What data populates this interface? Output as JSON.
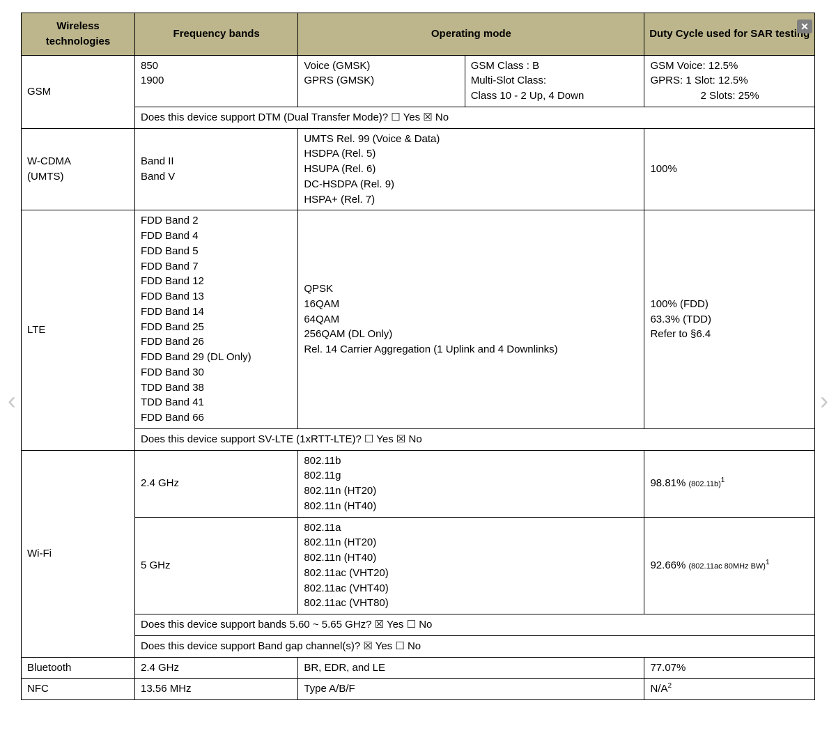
{
  "headers": {
    "tech": "Wireless technologies",
    "freq": "Frequency bands",
    "mode": "Operating mode",
    "duty": "Duty Cycle used for SAR testing"
  },
  "gsm": {
    "tech": "GSM",
    "freq": "850\n1900",
    "mode_a": "Voice (GMSK)\nGPRS (GMSK)",
    "mode_b": "GSM Class : B\nMulti-Slot Class:\nClass 10 - 2 Up, 4 Down",
    "duty_l1": "GSM Voice: 12.5%",
    "duty_l2": "GPRS: 1 Slot: 12.5%",
    "duty_l3": "2 Slots: 25%",
    "dtm": "Does this device support DTM (Dual Transfer Mode)? ☐ Yes ☒ No"
  },
  "wcdma": {
    "tech": "W-CDMA\n(UMTS)",
    "freq": "Band II\nBand V",
    "mode": "UMTS Rel. 99 (Voice & Data)\nHSDPA (Rel. 5)\nHSUPA (Rel. 6)\nDC-HSDPA (Rel. 9)\nHSPA+ (Rel. 7)",
    "duty": "100%"
  },
  "lte": {
    "tech": "LTE",
    "freq": "FDD Band 2\nFDD Band 4\nFDD Band 5\nFDD Band 7\nFDD Band 12\nFDD Band 13\nFDD Band 14\nFDD Band 25\nFDD Band 26\nFDD Band 29 (DL Only)\nFDD Band 30\nTDD Band 38\nTDD Band 41\nFDD Band 66",
    "mode": "QPSK\n16QAM\n64QAM\n256QAM (DL Only)\nRel. 14 Carrier Aggregation (1 Uplink and 4 Downlinks)",
    "duty": "100% (FDD)\n63.3% (TDD)\nRefer to §6.4",
    "svlte": "Does this device support SV-LTE (1xRTT-LTE)? ☐ Yes ☒ No"
  },
  "wifi": {
    "tech": "Wi-Fi",
    "r24_freq": "2.4 GHz",
    "r24_mode": "802.11b\n802.11g\n802.11n (HT20)\n802.11n (HT40)",
    "r24_duty_main": "98.81% ",
    "r24_duty_note": "(802.11b)",
    "r5_freq": "5 GHz",
    "r5_mode": "802.11a\n802.11n (HT20)\n802.11n (HT40)\n802.11ac (VHT20)\n802.11ac (VHT40)\n802.11ac (VHT80)",
    "r5_duty_main": "92.66% ",
    "r5_duty_note": "(802.11ac 80MHz BW)",
    "q1": "Does this device support bands 5.60 ~ 5.65 GHz? ☒ Yes ☐ No",
    "q2": "Does this device support Band gap channel(s)? ☒ Yes ☐ No"
  },
  "bt": {
    "tech": "Bluetooth",
    "freq": "2.4 GHz",
    "mode": "BR, EDR, and LE",
    "duty": "77.07%"
  },
  "nfc": {
    "tech": "NFC",
    "freq": "13.56 MHz",
    "mode": "Type A/B/F",
    "duty": "N/A"
  },
  "sup1": "1",
  "sup2": "2",
  "close_glyph": "✕",
  "arrow_left": "‹",
  "arrow_right": "›"
}
